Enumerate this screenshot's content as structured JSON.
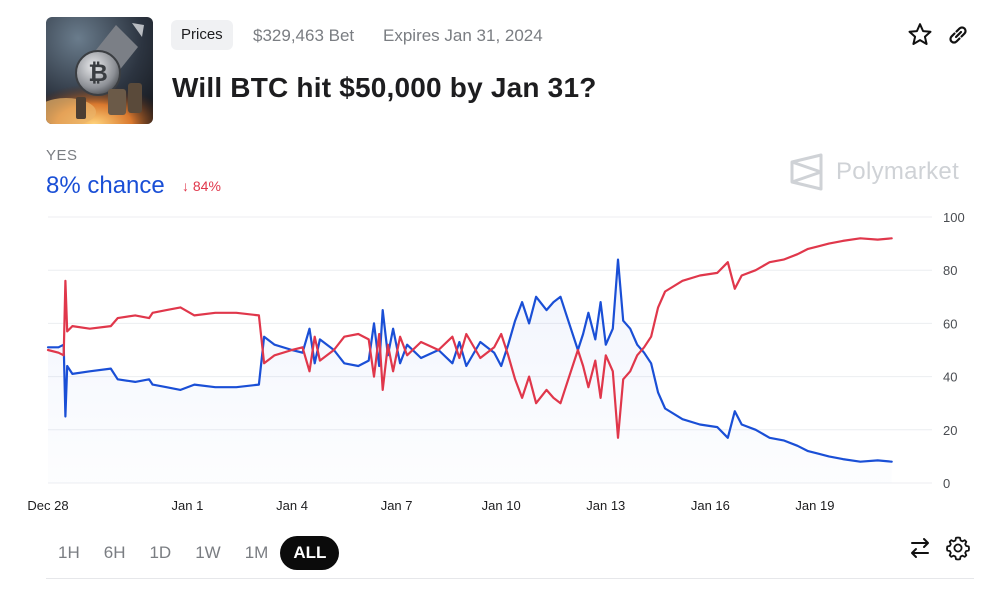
{
  "market": {
    "tag": "Prices",
    "volume": "$329,463 Bet",
    "expires": "Expires Jan 31, 2024",
    "title": "Will BTC hit $50,000 by Jan 31?",
    "thumbnail_icon": "bitcoin-rocket-image"
  },
  "actions": {
    "favorite_icon": "star-icon",
    "link_icon": "link-icon",
    "swap_icon": "swap-arrows-icon",
    "settings_icon": "gear-icon"
  },
  "outcome": {
    "label": "YES",
    "chance": "8% chance",
    "change": "84%",
    "change_icon": "arrow-down-icon"
  },
  "brand": {
    "name": "Polymarket",
    "logo_icon": "polymarket-logo-icon"
  },
  "timeframes": [
    "1H",
    "6H",
    "1D",
    "1W",
    "1M",
    "ALL"
  ],
  "selected_timeframe": "ALL",
  "colors": {
    "yes": "#1a4fd6",
    "no": "#e0374b",
    "accent_text": "#1a4fd6"
  },
  "chart_data": {
    "type": "line",
    "x_tick_labels": [
      "Dec 28",
      "Jan 1",
      "Jan 4",
      "Jan 7",
      "Jan 10",
      "Jan 13",
      "Jan 16",
      "Jan 19"
    ],
    "y_tick_labels": [
      "100",
      "80",
      "60",
      "40",
      "20",
      "0"
    ],
    "ylim": [
      0,
      100
    ],
    "x_domain_days": [
      0,
      25.3
    ],
    "x_tick_days": [
      0,
      4,
      7,
      10,
      13,
      16,
      19,
      22
    ],
    "grid": true,
    "series": [
      {
        "color": "#1a4fd6",
        "points": [
          [
            0,
            51
          ],
          [
            0.3,
            51
          ],
          [
            0.45,
            52
          ],
          [
            0.5,
            25
          ],
          [
            0.55,
            44
          ],
          [
            0.7,
            41
          ],
          [
            1.2,
            42
          ],
          [
            1.8,
            43
          ],
          [
            2.0,
            39
          ],
          [
            2.5,
            38
          ],
          [
            2.9,
            39
          ],
          [
            3.0,
            37
          ],
          [
            3.4,
            36
          ],
          [
            3.8,
            35
          ],
          [
            4.2,
            37
          ],
          [
            4.8,
            36
          ],
          [
            5.4,
            36
          ],
          [
            6.05,
            37
          ],
          [
            6.2,
            55
          ],
          [
            6.5,
            52
          ],
          [
            7.0,
            50
          ],
          [
            7.3,
            49
          ],
          [
            7.5,
            58
          ],
          [
            7.65,
            45
          ],
          [
            7.8,
            54
          ],
          [
            8.2,
            50
          ],
          [
            8.5,
            45
          ],
          [
            8.9,
            44
          ],
          [
            9.2,
            46
          ],
          [
            9.35,
            60
          ],
          [
            9.5,
            44
          ],
          [
            9.6,
            65
          ],
          [
            9.75,
            48
          ],
          [
            9.9,
            58
          ],
          [
            10.1,
            45
          ],
          [
            10.3,
            52
          ],
          [
            10.7,
            47
          ],
          [
            11.2,
            50
          ],
          [
            11.6,
            45
          ],
          [
            11.8,
            53
          ],
          [
            12.0,
            44
          ],
          [
            12.4,
            53
          ],
          [
            12.8,
            49
          ],
          [
            13.0,
            44
          ],
          [
            13.2,
            52
          ],
          [
            13.4,
            61
          ],
          [
            13.6,
            68
          ],
          [
            13.8,
            60
          ],
          [
            14.0,
            70
          ],
          [
            14.3,
            65
          ],
          [
            14.5,
            68
          ],
          [
            14.7,
            70
          ],
          [
            14.85,
            64
          ],
          [
            15.0,
            58
          ],
          [
            15.2,
            50
          ],
          [
            15.35,
            56
          ],
          [
            15.5,
            64
          ],
          [
            15.7,
            54
          ],
          [
            15.85,
            68
          ],
          [
            16.0,
            52
          ],
          [
            16.2,
            58
          ],
          [
            16.35,
            84
          ],
          [
            16.5,
            61
          ],
          [
            16.7,
            58
          ],
          [
            16.9,
            52
          ],
          [
            17.1,
            49
          ],
          [
            17.3,
            45
          ],
          [
            17.5,
            34
          ],
          [
            17.7,
            28
          ],
          [
            18.2,
            24
          ],
          [
            18.7,
            22
          ],
          [
            19.2,
            21
          ],
          [
            19.5,
            17
          ],
          [
            19.7,
            27
          ],
          [
            19.9,
            22
          ],
          [
            20.3,
            20
          ],
          [
            20.7,
            17
          ],
          [
            21.1,
            16
          ],
          [
            21.5,
            14
          ],
          [
            21.8,
            12
          ],
          [
            22.1,
            11
          ],
          [
            22.4,
            10
          ],
          [
            22.8,
            9
          ],
          [
            23.3,
            8
          ],
          [
            23.8,
            8.5
          ],
          [
            24.2,
            8
          ]
        ]
      },
      {
        "color": "#e0374b",
        "points": [
          [
            0,
            50
          ],
          [
            0.3,
            49
          ],
          [
            0.45,
            48
          ],
          [
            0.5,
            76
          ],
          [
            0.55,
            57
          ],
          [
            0.7,
            59
          ],
          [
            1.2,
            58
          ],
          [
            1.8,
            59
          ],
          [
            2.0,
            62
          ],
          [
            2.5,
            63
          ],
          [
            2.9,
            62
          ],
          [
            3.0,
            64
          ],
          [
            3.4,
            65
          ],
          [
            3.8,
            66
          ],
          [
            4.2,
            63
          ],
          [
            4.8,
            64
          ],
          [
            5.4,
            64
          ],
          [
            6.05,
            63
          ],
          [
            6.2,
            45
          ],
          [
            6.5,
            48
          ],
          [
            7.0,
            50
          ],
          [
            7.3,
            51
          ],
          [
            7.5,
            42
          ],
          [
            7.65,
            55
          ],
          [
            7.8,
            46
          ],
          [
            8.2,
            50
          ],
          [
            8.5,
            55
          ],
          [
            8.9,
            56
          ],
          [
            9.2,
            54
          ],
          [
            9.35,
            40
          ],
          [
            9.5,
            56
          ],
          [
            9.6,
            35
          ],
          [
            9.75,
            52
          ],
          [
            9.9,
            42
          ],
          [
            10.1,
            55
          ],
          [
            10.3,
            48
          ],
          [
            10.7,
            53
          ],
          [
            11.2,
            50
          ],
          [
            11.6,
            55
          ],
          [
            11.8,
            47
          ],
          [
            12.0,
            56
          ],
          [
            12.4,
            47
          ],
          [
            12.8,
            51
          ],
          [
            13.0,
            56
          ],
          [
            13.2,
            48
          ],
          [
            13.4,
            39
          ],
          [
            13.6,
            32
          ],
          [
            13.8,
            40
          ],
          [
            14.0,
            30
          ],
          [
            14.3,
            35
          ],
          [
            14.5,
            32
          ],
          [
            14.7,
            30
          ],
          [
            14.85,
            36
          ],
          [
            15.0,
            42
          ],
          [
            15.2,
            50
          ],
          [
            15.35,
            44
          ],
          [
            15.5,
            36
          ],
          [
            15.7,
            46
          ],
          [
            15.85,
            32
          ],
          [
            16.0,
            48
          ],
          [
            16.2,
            42
          ],
          [
            16.35,
            17
          ],
          [
            16.5,
            39
          ],
          [
            16.7,
            42
          ],
          [
            16.9,
            48
          ],
          [
            17.1,
            51
          ],
          [
            17.3,
            55
          ],
          [
            17.5,
            66
          ],
          [
            17.7,
            72
          ],
          [
            18.2,
            76
          ],
          [
            18.7,
            78
          ],
          [
            19.2,
            79
          ],
          [
            19.5,
            83
          ],
          [
            19.7,
            73
          ],
          [
            19.9,
            78
          ],
          [
            20.3,
            80
          ],
          [
            20.7,
            83
          ],
          [
            21.1,
            84
          ],
          [
            21.5,
            86
          ],
          [
            21.8,
            88
          ],
          [
            22.1,
            89
          ],
          [
            22.4,
            90
          ],
          [
            22.8,
            91
          ],
          [
            23.3,
            92
          ],
          [
            23.8,
            91.5
          ],
          [
            24.2,
            92
          ]
        ]
      }
    ]
  }
}
